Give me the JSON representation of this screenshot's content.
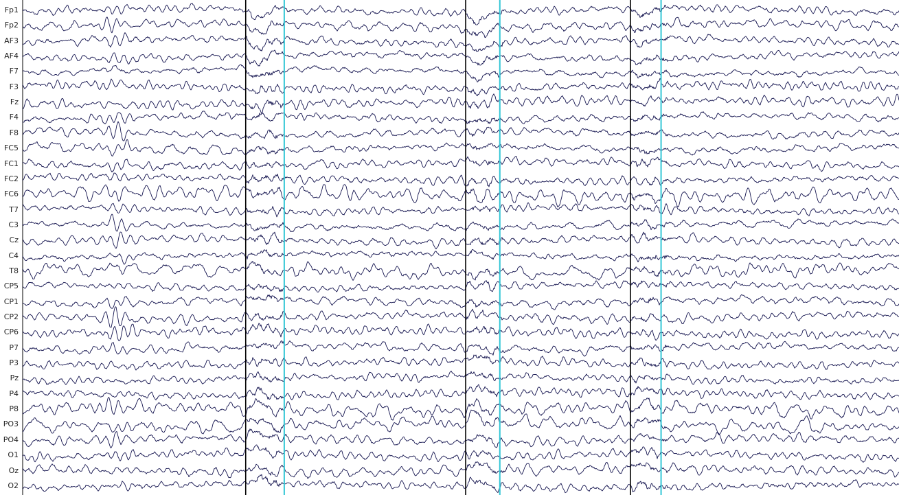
{
  "colors": {
    "background": "#ffffff",
    "trace": "#14144f",
    "event_marker": "#000000",
    "cursor_marker": "#35c7d6",
    "label_text": "#222222"
  },
  "chart_data": {
    "type": "line",
    "title": "",
    "xlabel": "",
    "ylabel": "",
    "grid": false,
    "legend": "none",
    "channels": [
      "Fp1",
      "Fp2",
      "AF3",
      "AF4",
      "F7",
      "F3",
      "Fz",
      "F4",
      "F8",
      "FC5",
      "FC1",
      "FC2",
      "FC6",
      "T7",
      "C3",
      "Cz",
      "C4",
      "T8",
      "CP5",
      "CP1",
      "CP2",
      "CP6",
      "P7",
      "P3",
      "Pz",
      "P4",
      "P8",
      "PO3",
      "PO4",
      "O1",
      "Oz",
      "O2"
    ],
    "x_range": [
      0,
      1
    ],
    "event_markers": [
      {
        "x": 0.2545,
        "color": "#000000"
      },
      {
        "x": 0.5055,
        "color": "#000000"
      },
      {
        "x": 0.6935,
        "color": "#000000"
      }
    ],
    "cursor_markers": [
      {
        "x": 0.2985,
        "color": "#35c7d6"
      },
      {
        "x": 0.5445,
        "color": "#35c7d6"
      },
      {
        "x": 0.7285,
        "color": "#35c7d6"
      }
    ],
    "burst_interval": [
      0.085,
      0.13
    ]
  }
}
